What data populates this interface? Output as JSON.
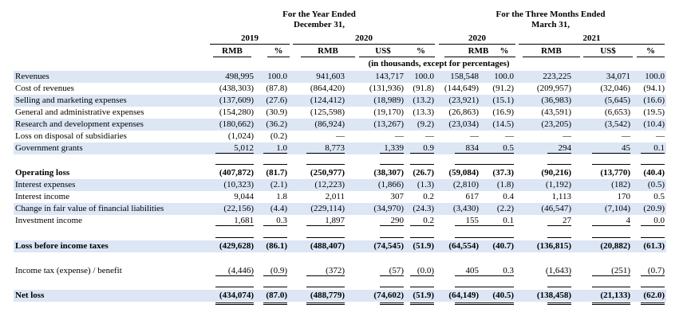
{
  "header": {
    "year_group": "For the Year Ended\nDecember 31,",
    "quarter_group": "For the Three Months Ended\nMarch 31,",
    "years": [
      "2019",
      "2020",
      "2020",
      "2021"
    ],
    "currencies": [
      "RMB",
      "%",
      "RMB",
      "US$",
      "%",
      "RMB",
      "%",
      "RMB",
      "US$",
      "%"
    ],
    "units_note": "(in thousands, except for percentages)"
  },
  "rows": [
    {
      "label": "Revenues",
      "values": [
        "498,995",
        "100.0",
        "941,603",
        "143,717",
        "100.0",
        "158,548",
        "100.0",
        "223,225",
        "34,071",
        "100.0"
      ]
    },
    {
      "label": "Cost of revenues",
      "values": [
        "(438,303)",
        "(87.8)",
        "(864,420)",
        "(131,936)",
        "(91.8)",
        "(144,649)",
        "(91.2)",
        "(209,957)",
        "(32,046)",
        "(94.1)"
      ]
    },
    {
      "label": "Selling and marketing expenses",
      "values": [
        "(137,609)",
        "(27.6)",
        "(124,412)",
        "(18,989)",
        "(13.2)",
        "(23,921)",
        "(15.1)",
        "(36,983)",
        "(5,645)",
        "(16.6)"
      ]
    },
    {
      "label": "General and administrative expenses",
      "values": [
        "(154,280)",
        "(30.9)",
        "(125,598)",
        "(19,170)",
        "(13.3)",
        "(26,863)",
        "(16.9)",
        "(43,591)",
        "(6,653)",
        "(19.5)"
      ]
    },
    {
      "label": "Research and development expenses",
      "values": [
        "(180,662)",
        "(36.2)",
        "(86,924)",
        "(13,267)",
        "(9.2)",
        "(23,034)",
        "(14.5)",
        "(23,205)",
        "(3,542)",
        "(10.4)"
      ]
    },
    {
      "label": "Loss on disposal of subsidiaries",
      "values": [
        "(1,024)",
        "(0.2)",
        "—",
        "—",
        "—",
        "—",
        "—",
        "—",
        "—",
        "—"
      ]
    },
    {
      "label": "Government grants",
      "values": [
        "5,012",
        "1.0",
        "8,773",
        "1,339",
        "0.9",
        "834",
        "0.5",
        "294",
        "45",
        "0.1"
      ]
    },
    {
      "label": "Operating loss",
      "values": [
        "(407,872)",
        "(81.7)",
        "(250,977)",
        "(38,307)",
        "(26.7)",
        "(59,084)",
        "(37.3)",
        "(90,216)",
        "(13,770)",
        "(40.4)"
      ]
    },
    {
      "label": "Interest expenses",
      "values": [
        "(10,323)",
        "(2.1)",
        "(12,223)",
        "(1,866)",
        "(1.3)",
        "(2,810)",
        "(1.8)",
        "(1,192)",
        "(182)",
        "(0.5)"
      ]
    },
    {
      "label": "Interest income",
      "values": [
        "9,044",
        "1.8",
        "2,011",
        "307",
        "0.2",
        "617",
        "0.4",
        "1,113",
        "170",
        "0.5"
      ]
    },
    {
      "label": "Change in fair value of financial liabilities",
      "values": [
        "(22,156)",
        "(4.4)",
        "(229,114)",
        "(34,970)",
        "(24.3)",
        "(3,430)",
        "(2.2)",
        "(46,547)",
        "(7,104)",
        "(20.9)"
      ]
    },
    {
      "label": "Investment income",
      "values": [
        "1,681",
        "0.3",
        "1,897",
        "290",
        "0.2",
        "155",
        "0.1",
        "27",
        "4",
        "0.0"
      ]
    },
    {
      "label": "Loss before income taxes",
      "values": [
        "(429,628)",
        "(86.1)",
        "(488,407)",
        "(74,545)",
        "(51.9)",
        "(64,554)",
        "(40.7)",
        "(136,815)",
        "(20,882)",
        "(61.3)"
      ]
    },
    {
      "label": "Income tax (expense) / benefit",
      "values": [
        "(4,446)",
        "(0.9)",
        "(372)",
        "(57)",
        "(0.0)",
        "405",
        "0.3",
        "(1,643)",
        "(251)",
        "(0.7)"
      ]
    },
    {
      "label": "Net loss",
      "values": [
        "(434,074)",
        "(87.0)",
        "(488,779)",
        "(74,602)",
        "(51.9)",
        "(64,149)",
        "(40.5)",
        "(138,458)",
        "(21,133)",
        "(62.0)"
      ]
    }
  ]
}
